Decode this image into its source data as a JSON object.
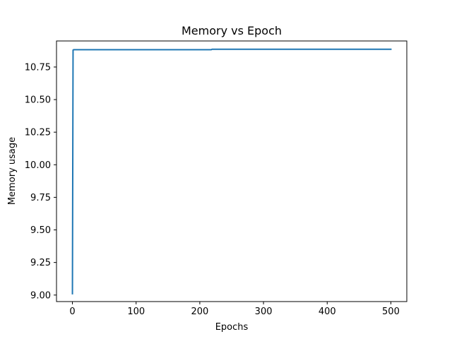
{
  "chart_data": {
    "type": "line",
    "title": "Memory vs Epoch",
    "xlabel": "Epochs",
    "ylabel": "Memory usage",
    "xlim": [
      -25,
      525
    ],
    "ylim": [
      8.95,
      10.95
    ],
    "xticks": [
      0,
      100,
      200,
      300,
      400,
      500
    ],
    "xtick_labels": [
      "0",
      "100",
      "200",
      "300",
      "400",
      "500"
    ],
    "yticks": [
      9.0,
      9.25,
      9.5,
      9.75,
      10.0,
      10.25,
      10.5,
      10.75
    ],
    "ytick_labels": [
      "9.00",
      "9.25",
      "9.50",
      "9.75",
      "10.00",
      "10.25",
      "10.50",
      "10.75"
    ],
    "grid": false,
    "line_color": "#1f77b4",
    "series": [
      {
        "x": [
          0,
          1,
          2,
          50,
          100,
          150,
          200,
          218,
          219,
          250,
          300,
          350,
          400,
          450,
          500
        ],
        "values": [
          9.01,
          10.88,
          10.883,
          10.883,
          10.883,
          10.883,
          10.883,
          10.883,
          10.886,
          10.886,
          10.886,
          10.886,
          10.886,
          10.886,
          10.886
        ]
      }
    ]
  }
}
